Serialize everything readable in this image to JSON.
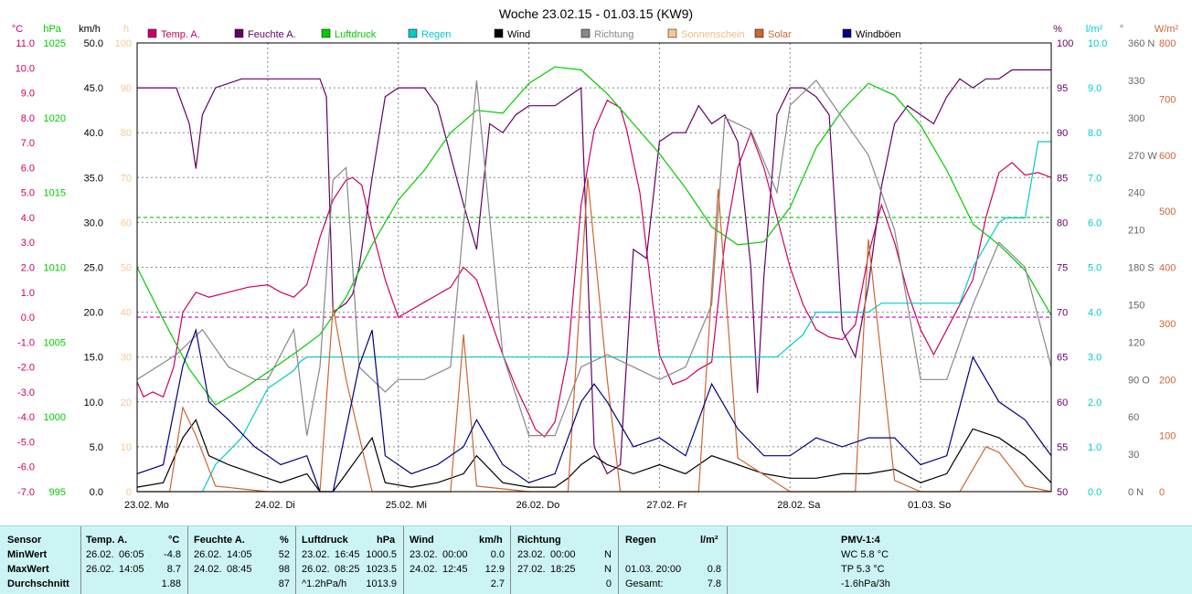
{
  "chart_data": {
    "type": "line",
    "title": "Woche 23.02.15 - 01.03.15 (KW9)",
    "x_ticks": [
      "23.02. Mo",
      "24.02. Di",
      "25.02. Mi",
      "26.02. Do",
      "27.02. Fr",
      "28.02. Sa",
      "01.03. So"
    ],
    "axes": {
      "temp": {
        "unit": "°C",
        "color": "#cc0066",
        "range": [
          -7.0,
          11.0
        ],
        "ticks": [
          "-7.0",
          "-6.0",
          "-5.0",
          "-4.0",
          "-3.0",
          "-2.0",
          "-1.0",
          "0.0",
          "1.0",
          "2.0",
          "3.0",
          "4.0",
          "5.0",
          "6.0",
          "7.0",
          "8.0",
          "9.0",
          "10.0",
          "11.0"
        ]
      },
      "press": {
        "unit": "hPa",
        "color": "#00cc00",
        "range": [
          995,
          1025
        ],
        "ticks": [
          "995",
          "1000",
          "1005",
          "1010",
          "1015",
          "1020",
          "1025"
        ]
      },
      "wind": {
        "unit": "km/h",
        "color": "#000000",
        "range": [
          0,
          50
        ],
        "ticks": [
          "0.0",
          "5.0",
          "10.0",
          "15.0",
          "20.0",
          "25.0",
          "30.0",
          "35.0",
          "40.0",
          "45.0",
          "50.0"
        ]
      },
      "sun": {
        "unit": "h",
        "color": "#f5c892",
        "range": [
          0,
          100
        ],
        "ticks": [
          "0",
          "10",
          "20",
          "30",
          "40",
          "50",
          "60",
          "70",
          "80",
          "90",
          "100"
        ]
      },
      "hum": {
        "unit": "%",
        "color": "#660066",
        "range": [
          50,
          100
        ],
        "ticks": [
          "50",
          "55",
          "60",
          "65",
          "70",
          "75",
          "80",
          "85",
          "90",
          "95",
          "100"
        ]
      },
      "rain": {
        "unit": "l/m²",
        "color": "#00cccc",
        "range": [
          0,
          10
        ],
        "ticks": [
          "0.0",
          "1.0",
          "2.0",
          "3.0",
          "4.0",
          "5.0",
          "6.0",
          "7.0",
          "8.0",
          "9.0",
          "10.0"
        ]
      },
      "dir": {
        "unit": "°",
        "color": "#666666",
        "range": [
          0,
          360
        ],
        "ticks": [
          "0 N",
          "30",
          "60",
          "90 O",
          "120",
          "150",
          "180 S",
          "210",
          "240",
          "270 W",
          "300",
          "330",
          "360 N"
        ]
      },
      "solar": {
        "unit": "W/m²",
        "color": "#cc6633",
        "range": [
          0,
          800
        ],
        "ticks": [
          "0",
          "100",
          "200",
          "300",
          "400",
          "500",
          "600",
          "700",
          "800"
        ]
      }
    },
    "legend": [
      {
        "name": "Temp. A.",
        "color": "#cc0066"
      },
      {
        "name": "Feuchte A.",
        "color": "#660066"
      },
      {
        "name": "Luftdruck",
        "color": "#00cc00"
      },
      {
        "name": "Regen",
        "color": "#00cccc"
      },
      {
        "name": "Wind",
        "color": "#000000"
      },
      {
        "name": "Richtung",
        "color": "#888888"
      },
      {
        "name": "Sonnenschein",
        "color": "#f5c892"
      },
      {
        "name": "Solar",
        "color": "#cc6633"
      },
      {
        "name": "Windböen",
        "color": "#000080"
      }
    ],
    "series": [
      {
        "name": "Temp. A.",
        "axis": "temp",
        "color": "#cc0066",
        "x": [
          0,
          0.05,
          0.12,
          0.2,
          0.28,
          0.35,
          0.45,
          0.55,
          0.7,
          0.85,
          1,
          1.1,
          1.2,
          1.3,
          1.4,
          1.5,
          1.6,
          1.65,
          1.72,
          1.8,
          1.9,
          2,
          2.1,
          2.2,
          2.3,
          2.4,
          2.5,
          2.6,
          2.7,
          2.8,
          2.9,
          3,
          3.05,
          3.12,
          3.2,
          3.3,
          3.4,
          3.5,
          3.6,
          3.7,
          3.75,
          3.85,
          3.95,
          4,
          4.1,
          4.2,
          4.3,
          4.4,
          4.5,
          4.6,
          4.7,
          4.8,
          4.9,
          5,
          5.1,
          5.2,
          5.3,
          5.4,
          5.5,
          5.6,
          5.7,
          5.8,
          5.9,
          6,
          6.1,
          6.2,
          6.3,
          6.4,
          6.5,
          6.6,
          6.7,
          6.8,
          6.9,
          7
        ],
        "values": [
          -2.6,
          -3.2,
          -3.0,
          -3.2,
          -2.0,
          0.2,
          1.0,
          0.8,
          1.0,
          1.2,
          1.3,
          1.0,
          0.8,
          1.3,
          3.2,
          4.7,
          5.5,
          5.6,
          5.3,
          3.5,
          1.5,
          0.0,
          0.3,
          0.6,
          0.9,
          1.2,
          2.0,
          1.5,
          0.0,
          -1.5,
          -2.8,
          -3.9,
          -4.5,
          -4.8,
          -4.2,
          -1.5,
          4.5,
          7.5,
          8.7,
          8.4,
          7.5,
          5.0,
          0.5,
          -1.5,
          -2.7,
          -2.5,
          -2.1,
          -1.8,
          3.0,
          6.0,
          7.4,
          6.0,
          4.0,
          2.0,
          0.5,
          -0.5,
          -0.8,
          -0.9,
          -0.3,
          2.5,
          4.5,
          3.0,
          1.0,
          -0.5,
          -1.5,
          -0.5,
          0.5,
          1.5,
          4.0,
          5.8,
          6.2,
          5.7,
          5.8,
          5.6
        ]
      },
      {
        "name": "Feuchte A.",
        "axis": "hum",
        "color": "#660066",
        "x": [
          0,
          0.2,
          0.3,
          0.4,
          0.45,
          0.5,
          0.6,
          0.8,
          1,
          1.2,
          1.3,
          1.4,
          1.45,
          1.5,
          1.6,
          1.65,
          1.7,
          1.8,
          1.9,
          2,
          2.1,
          2.2,
          2.3,
          2.5,
          2.6,
          2.7,
          2.8,
          2.9,
          3,
          3.2,
          3.3,
          3.4,
          3.5,
          3.6,
          3.7,
          3.8,
          3.9,
          4,
          4.1,
          4.2,
          4.3,
          4.4,
          4.5,
          4.6,
          4.7,
          4.75,
          4.8,
          4.9,
          5,
          5.1,
          5.2,
          5.3,
          5.4,
          5.5,
          5.6,
          5.7,
          5.8,
          5.9,
          6,
          6.1,
          6.2,
          6.3,
          6.4,
          6.5,
          6.6,
          6.7,
          6.8,
          6.9,
          7
        ],
        "values": [
          95,
          95,
          95,
          91,
          86,
          92,
          95,
          96,
          96,
          96,
          96,
          96,
          94,
          70,
          71,
          72,
          75,
          85,
          94,
          95,
          95,
          95,
          93,
          82,
          77,
          91,
          90,
          92,
          93,
          93,
          94,
          95,
          55,
          52,
          53,
          77,
          76,
          89,
          90,
          90,
          93,
          91,
          92,
          89,
          75,
          61,
          74,
          92,
          95,
          95,
          94,
          92,
          68,
          65,
          73,
          84,
          91,
          93,
          92,
          91,
          94,
          96,
          95,
          96,
          96,
          97,
          97,
          97,
          97
        ]
      },
      {
        "name": "Luftdruck",
        "axis": "press",
        "color": "#00cc00",
        "x": [
          0,
          0.2,
          0.4,
          0.6,
          0.8,
          1,
          1.2,
          1.4,
          1.6,
          1.8,
          2,
          2.2,
          2.4,
          2.6,
          2.8,
          3,
          3.2,
          3.4,
          3.6,
          3.8,
          4,
          4.2,
          4.4,
          4.6,
          4.8,
          5,
          5.2,
          5.4,
          5.6,
          5.8,
          6,
          6.2,
          6.4,
          6.6,
          6.8,
          7
        ],
        "values": [
          1010,
          1006.5,
          1003.2,
          1000.8,
          1001.8,
          1003.0,
          1004.2,
          1005.5,
          1008,
          1011.5,
          1014.5,
          1016.5,
          1019,
          1020.5,
          1020.3,
          1022.3,
          1023.4,
          1023.2,
          1021.6,
          1019.6,
          1017.6,
          1015.3,
          1012.7,
          1011.5,
          1011.7,
          1014,
          1018,
          1020.5,
          1022.3,
          1021.5,
          1019.5,
          1016.5,
          1012.9,
          1011.5,
          1009.8,
          1006.8
        ]
      },
      {
        "name": "Regen",
        "axis": "rain",
        "color": "#00cccc",
        "x": [
          0,
          0.5,
          0.6,
          0.8,
          1,
          1.2,
          1.25,
          1.3,
          2,
          3,
          3.5,
          4,
          4.5,
          4.9,
          5.1,
          5.2,
          5.6,
          5.7,
          6,
          6.3,
          6.4,
          6.6,
          6.65,
          6.8,
          6.9,
          7
        ],
        "values": [
          0,
          0,
          0.6,
          1.2,
          2.3,
          2.7,
          2.9,
          3.0,
          3.0,
          3.0,
          3.0,
          3.0,
          3.0,
          3.0,
          3.5,
          4.0,
          4.0,
          4.2,
          4.2,
          4.2,
          5.0,
          6.0,
          6.1,
          6.1,
          7.8,
          7.8
        ]
      },
      {
        "name": "Wind",
        "axis": "wind",
        "color": "#000000",
        "x": [
          0,
          0.2,
          0.35,
          0.45,
          0.55,
          0.7,
          0.9,
          1.1,
          1.3,
          1.4,
          1.5,
          1.7,
          1.8,
          1.9,
          2.1,
          2.3,
          2.5,
          2.6,
          2.8,
          3,
          3.2,
          3.3,
          3.4,
          3.5,
          3.6,
          3.8,
          4,
          4.2,
          4.4,
          4.6,
          4.8,
          5,
          5.2,
          5.4,
          5.6,
          5.8,
          6,
          6.2,
          6.4,
          6.6,
          6.8,
          7
        ],
        "values": [
          0.5,
          1,
          6,
          8,
          4,
          3,
          2,
          1,
          2,
          0,
          0,
          4,
          6,
          1,
          0.5,
          1,
          2,
          4,
          1,
          0.5,
          0.5,
          1.5,
          3,
          4,
          3,
          2,
          3,
          2,
          4,
          3,
          2,
          1.5,
          1.5,
          2,
          2,
          2.5,
          1,
          2,
          7,
          6,
          4,
          1
        ]
      },
      {
        "name": "Richtung",
        "axis": "dir",
        "color": "#888888",
        "x": [
          0,
          0.3,
          0.5,
          0.7,
          0.9,
          1,
          1.2,
          1.3,
          1.4,
          1.5,
          1.6,
          1.7,
          1.8,
          1.9,
          2,
          2.2,
          2.4,
          2.6,
          2.8,
          3,
          3.2,
          3.4,
          3.6,
          3.8,
          4,
          4.2,
          4.4,
          4.5,
          4.7,
          4.9,
          5,
          5.2,
          5.4,
          5.6,
          5.8,
          6,
          6.2,
          6.4,
          6.6,
          6.8,
          7
        ],
        "values": [
          90,
          110,
          130,
          100,
          90,
          90,
          130,
          45,
          100,
          250,
          260,
          100,
          90,
          80,
          90,
          90,
          100,
          330,
          110,
          45,
          45,
          100,
          110,
          100,
          90,
          100,
          150,
          300,
          290,
          240,
          310,
          330,
          300,
          270,
          210,
          90,
          90,
          150,
          200,
          180,
          100
        ]
      },
      {
        "name": "Sonnenschein",
        "axis": "sun",
        "color": "#f5c892",
        "x": [
          0,
          7
        ],
        "values": [
          0,
          0
        ]
      },
      {
        "name": "Solar",
        "axis": "solar",
        "color": "#cc6633",
        "x": [
          0,
          0.25,
          0.35,
          0.45,
          0.6,
          1,
          1.4,
          1.5,
          1.6,
          1.8,
          2,
          2.4,
          2.5,
          2.6,
          3,
          3.3,
          3.45,
          3.6,
          3.7,
          4,
          4.3,
          4.45,
          4.6,
          5,
          5.3,
          5.5,
          5.6,
          5.8,
          6,
          6.3,
          6.5,
          6.6,
          6.8,
          7
        ],
        "values": [
          0,
          0,
          150,
          100,
          10,
          0,
          0,
          330,
          200,
          0,
          0,
          0,
          280,
          10,
          0,
          0,
          560,
          200,
          0,
          0,
          0,
          540,
          60,
          0,
          0,
          0,
          450,
          20,
          0,
          0,
          80,
          70,
          10,
          0
        ]
      },
      {
        "name": "Windböen",
        "axis": "wind",
        "color": "#000080",
        "x": [
          0,
          0.2,
          0.35,
          0.45,
          0.55,
          0.7,
          0.9,
          1.1,
          1.3,
          1.4,
          1.5,
          1.7,
          1.8,
          1.9,
          2.1,
          2.3,
          2.5,
          2.6,
          2.8,
          3,
          3.2,
          3.3,
          3.4,
          3.5,
          3.6,
          3.8,
          4,
          4.2,
          4.4,
          4.6,
          4.8,
          5,
          5.2,
          5.4,
          5.6,
          5.8,
          6,
          6.2,
          6.4,
          6.6,
          6.8,
          7
        ],
        "values": [
          2,
          3,
          14,
          18,
          10,
          8,
          5,
          3,
          4,
          0,
          0,
          14,
          18,
          4,
          2,
          3,
          5,
          8,
          3,
          1,
          2,
          6,
          10,
          12,
          10,
          5,
          6,
          4,
          12,
          7,
          4,
          4,
          6,
          5,
          6,
          6,
          3,
          4,
          15,
          10,
          8,
          4
        ]
      }
    ],
    "hlines": [
      {
        "axis": "temp",
        "value": 4.0,
        "color": "#00cc00",
        "dash": true
      },
      {
        "axis": "temp",
        "value": 0.0,
        "color": "#cc00cc",
        "dash": true
      }
    ]
  },
  "summary": {
    "sensor": {
      "header": "Sensor",
      "rows": [
        "MinWert",
        "MaxWert",
        "Durchschnitt"
      ]
    },
    "temp": {
      "header": "Temp. A.",
      "unit": "°C",
      "rows": [
        [
          "26.02.",
          "06:05",
          "-4.8"
        ],
        [
          "26.02.",
          "14:05",
          "8.7"
        ],
        [
          "",
          "",
          "1.88"
        ]
      ]
    },
    "hum": {
      "header": "Feuchte A.",
      "unit": "%",
      "rows": [
        [
          "26.02.",
          "14:05",
          "52"
        ],
        [
          "24.02.",
          "08:45",
          "98"
        ],
        [
          "",
          "",
          "87"
        ]
      ]
    },
    "press": {
      "header": "Luftdruck",
      "unit": "hPa",
      "rows": [
        [
          "23.02.",
          "16:45",
          "1000.5"
        ],
        [
          "26.02.",
          "08:25",
          "1023.5"
        ],
        [
          "^1.2hPa/h",
          "",
          "1013.9"
        ]
      ]
    },
    "wind": {
      "header": "Wind",
      "unit": "km/h",
      "rows": [
        [
          "23.02.",
          "00:00",
          "0.0"
        ],
        [
          "24.02.",
          "12:45",
          "12.9"
        ],
        [
          "",
          "",
          "2.7"
        ]
      ]
    },
    "dir": {
      "header": "Richtung",
      "rows": [
        [
          "23.02.",
          "00:00",
          "N"
        ],
        [
          "27.02.",
          "18:25",
          "N"
        ],
        [
          "",
          "",
          "0"
        ]
      ]
    },
    "rain": {
      "header": "Regen",
      "unit": "l/m²",
      "rows": [
        [
          "",
          ""
        ],
        [
          "01.03.  20:00",
          "0.8"
        ],
        [
          "Gesamt:",
          "7.8"
        ]
      ]
    },
    "pmv": {
      "header": "PMV-1:4",
      "rows": [
        "WC 5.8 °C",
        "TP 5.3 °C",
        "-1.6hPa/3h"
      ]
    }
  }
}
